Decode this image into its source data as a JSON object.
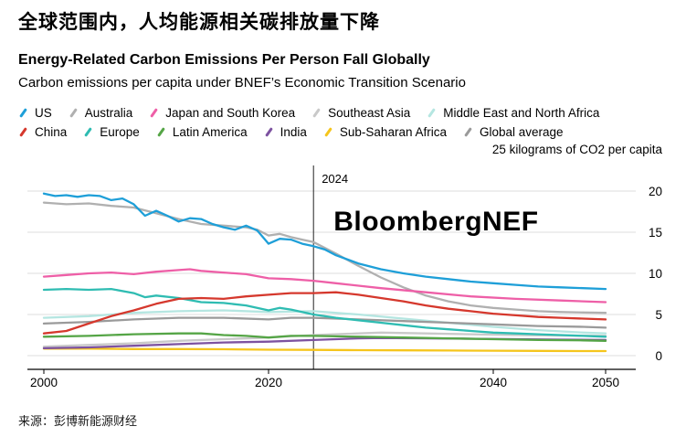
{
  "header": {
    "title_cn": "全球范围内，人均能源相关碳排放量下降",
    "title_en": "Energy-Related Carbon Emissions Per Person Fall Globally",
    "subtitle": "Carbon emissions per capita under BNEF’s Economic Transition Scenario"
  },
  "legend_rows": [
    [
      "US",
      "Australia",
      "Japan and South Korea",
      "Southeast Asia",
      "Middle East and North Africa"
    ],
    [
      "China",
      "Europe",
      "Latin America",
      "India",
      "Sub-Saharan Africa",
      "Global average"
    ]
  ],
  "chart_data": {
    "type": "line",
    "unit_label": "25 kilograms of CO2 per capita",
    "watermark": "BloombergNEF",
    "x_range": [
      2000,
      2050
    ],
    "ylim": [
      0,
      25
    ],
    "y_ticks": [
      0,
      5,
      10,
      15,
      20
    ],
    "x_ticks": [
      2000,
      2020,
      2040,
      2050
    ],
    "annotation": {
      "year": 2024,
      "label": "2024"
    },
    "grid": true,
    "legend_position": "top",
    "series": [
      {
        "name": "Middle East and North Africa",
        "color": "#b5e6e1",
        "points": [
          [
            2000,
            4.6
          ],
          [
            2004,
            4.8
          ],
          [
            2008,
            5.2
          ],
          [
            2012,
            5.4
          ],
          [
            2016,
            5.5
          ],
          [
            2020,
            5.3
          ],
          [
            2024,
            5.4
          ],
          [
            2028,
            5.0
          ],
          [
            2032,
            4.5
          ],
          [
            2036,
            4.0
          ],
          [
            2040,
            3.5
          ],
          [
            2044,
            3.1
          ],
          [
            2048,
            2.8
          ],
          [
            2050,
            2.7
          ]
        ]
      },
      {
        "name": "Southeast Asia",
        "color": "#c9c9c9",
        "points": [
          [
            2000,
            1.1
          ],
          [
            2004,
            1.3
          ],
          [
            2008,
            1.5
          ],
          [
            2012,
            1.8
          ],
          [
            2016,
            2.0
          ],
          [
            2020,
            2.2
          ],
          [
            2024,
            2.5
          ],
          [
            2028,
            2.7
          ],
          [
            2030,
            2.8
          ],
          [
            2034,
            2.7
          ],
          [
            2038,
            2.6
          ],
          [
            2042,
            2.5
          ],
          [
            2046,
            2.45
          ],
          [
            2050,
            2.4
          ]
        ]
      },
      {
        "name": "Global average",
        "color": "#9a9a9a",
        "points": [
          [
            2000,
            3.9
          ],
          [
            2004,
            4.1
          ],
          [
            2008,
            4.4
          ],
          [
            2012,
            4.6
          ],
          [
            2016,
            4.6
          ],
          [
            2020,
            4.4
          ],
          [
            2022,
            4.6
          ],
          [
            2024,
            4.6
          ],
          [
            2028,
            4.4
          ],
          [
            2032,
            4.2
          ],
          [
            2036,
            4.0
          ],
          [
            2040,
            3.8
          ],
          [
            2044,
            3.6
          ],
          [
            2048,
            3.5
          ],
          [
            2050,
            3.4
          ]
        ]
      },
      {
        "name": "Sub-Saharan Africa",
        "color": "#f5c51c",
        "points": [
          [
            2000,
            0.85
          ],
          [
            2004,
            0.85
          ],
          [
            2008,
            0.8
          ],
          [
            2012,
            0.8
          ],
          [
            2016,
            0.78
          ],
          [
            2020,
            0.72
          ],
          [
            2024,
            0.7
          ],
          [
            2028,
            0.67
          ],
          [
            2032,
            0.64
          ],
          [
            2036,
            0.62
          ],
          [
            2040,
            0.6
          ],
          [
            2044,
            0.58
          ],
          [
            2048,
            0.56
          ],
          [
            2050,
            0.55
          ]
        ]
      },
      {
        "name": "India",
        "color": "#7d52a0",
        "points": [
          [
            2000,
            0.9
          ],
          [
            2004,
            1.0
          ],
          [
            2008,
            1.2
          ],
          [
            2012,
            1.4
          ],
          [
            2016,
            1.6
          ],
          [
            2020,
            1.7
          ],
          [
            2024,
            1.9
          ],
          [
            2028,
            2.1
          ],
          [
            2030,
            2.15
          ],
          [
            2034,
            2.1
          ],
          [
            2038,
            2.05
          ],
          [
            2042,
            2.0
          ],
          [
            2046,
            1.95
          ],
          [
            2050,
            1.9
          ]
        ]
      },
      {
        "name": "Latin America",
        "color": "#55a546",
        "points": [
          [
            2000,
            2.3
          ],
          [
            2004,
            2.4
          ],
          [
            2008,
            2.6
          ],
          [
            2012,
            2.7
          ],
          [
            2014,
            2.7
          ],
          [
            2016,
            2.5
          ],
          [
            2018,
            2.4
          ],
          [
            2020,
            2.2
          ],
          [
            2022,
            2.4
          ],
          [
            2024,
            2.4
          ],
          [
            2028,
            2.3
          ],
          [
            2032,
            2.2
          ],
          [
            2036,
            2.1
          ],
          [
            2040,
            2.0
          ],
          [
            2044,
            1.9
          ],
          [
            2048,
            1.85
          ],
          [
            2050,
            1.8
          ]
        ]
      },
      {
        "name": "Europe",
        "color": "#2fbcb2",
        "points": [
          [
            2000,
            8.0
          ],
          [
            2002,
            8.1
          ],
          [
            2004,
            8.0
          ],
          [
            2006,
            8.1
          ],
          [
            2008,
            7.6
          ],
          [
            2009,
            7.1
          ],
          [
            2010,
            7.3
          ],
          [
            2012,
            7.0
          ],
          [
            2014,
            6.5
          ],
          [
            2016,
            6.4
          ],
          [
            2018,
            6.1
          ],
          [
            2020,
            5.5
          ],
          [
            2021,
            5.8
          ],
          [
            2022,
            5.6
          ],
          [
            2024,
            5.0
          ],
          [
            2026,
            4.6
          ],
          [
            2028,
            4.3
          ],
          [
            2030,
            4.0
          ],
          [
            2032,
            3.7
          ],
          [
            2034,
            3.4
          ],
          [
            2036,
            3.2
          ],
          [
            2038,
            3.0
          ],
          [
            2040,
            2.8
          ],
          [
            2042,
            2.7
          ],
          [
            2044,
            2.6
          ],
          [
            2046,
            2.5
          ],
          [
            2048,
            2.4
          ],
          [
            2050,
            2.3
          ]
        ]
      },
      {
        "name": "Australia",
        "color": "#b0b0b0",
        "points": [
          [
            2000,
            18.6
          ],
          [
            2002,
            18.4
          ],
          [
            2004,
            18.5
          ],
          [
            2006,
            18.2
          ],
          [
            2008,
            18.0
          ],
          [
            2010,
            17.3
          ],
          [
            2012,
            16.6
          ],
          [
            2014,
            16.0
          ],
          [
            2016,
            15.8
          ],
          [
            2018,
            15.6
          ],
          [
            2019,
            15.3
          ],
          [
            2020,
            14.6
          ],
          [
            2021,
            14.8
          ],
          [
            2022,
            14.4
          ],
          [
            2023,
            14.1
          ],
          [
            2024,
            13.8
          ],
          [
            2026,
            12.4
          ],
          [
            2028,
            10.9
          ],
          [
            2030,
            9.5
          ],
          [
            2032,
            8.3
          ],
          [
            2034,
            7.3
          ],
          [
            2036,
            6.6
          ],
          [
            2038,
            6.1
          ],
          [
            2040,
            5.8
          ],
          [
            2042,
            5.6
          ],
          [
            2044,
            5.4
          ],
          [
            2046,
            5.3
          ],
          [
            2048,
            5.25
          ],
          [
            2050,
            5.2
          ]
        ]
      },
      {
        "name": "Japan and South Korea",
        "color": "#ee5fa7",
        "points": [
          [
            2000,
            9.6
          ],
          [
            2002,
            9.8
          ],
          [
            2004,
            10.0
          ],
          [
            2006,
            10.1
          ],
          [
            2008,
            9.9
          ],
          [
            2010,
            10.2
          ],
          [
            2012,
            10.4
          ],
          [
            2013,
            10.5
          ],
          [
            2014,
            10.3
          ],
          [
            2016,
            10.1
          ],
          [
            2018,
            9.9
          ],
          [
            2020,
            9.4
          ],
          [
            2022,
            9.3
          ],
          [
            2024,
            9.1
          ],
          [
            2026,
            8.8
          ],
          [
            2028,
            8.5
          ],
          [
            2030,
            8.2
          ],
          [
            2034,
            7.7
          ],
          [
            2038,
            7.2
          ],
          [
            2042,
            6.9
          ],
          [
            2046,
            6.7
          ],
          [
            2050,
            6.5
          ]
        ]
      },
      {
        "name": "China",
        "color": "#d5382d",
        "points": [
          [
            2000,
            2.7
          ],
          [
            2002,
            3.0
          ],
          [
            2004,
            3.9
          ],
          [
            2006,
            4.8
          ],
          [
            2008,
            5.5
          ],
          [
            2010,
            6.3
          ],
          [
            2012,
            6.9
          ],
          [
            2014,
            7.0
          ],
          [
            2016,
            6.9
          ],
          [
            2018,
            7.2
          ],
          [
            2020,
            7.4
          ],
          [
            2022,
            7.6
          ],
          [
            2024,
            7.6
          ],
          [
            2026,
            7.7
          ],
          [
            2028,
            7.4
          ],
          [
            2030,
            7.0
          ],
          [
            2032,
            6.6
          ],
          [
            2034,
            6.1
          ],
          [
            2036,
            5.7
          ],
          [
            2038,
            5.4
          ],
          [
            2040,
            5.1
          ],
          [
            2042,
            4.9
          ],
          [
            2044,
            4.7
          ],
          [
            2046,
            4.6
          ],
          [
            2048,
            4.5
          ],
          [
            2050,
            4.4
          ]
        ]
      },
      {
        "name": "US",
        "color": "#1e9fd8",
        "points": [
          [
            2000,
            19.7
          ],
          [
            2001,
            19.4
          ],
          [
            2002,
            19.5
          ],
          [
            2003,
            19.3
          ],
          [
            2004,
            19.5
          ],
          [
            2005,
            19.4
          ],
          [
            2006,
            18.9
          ],
          [
            2007,
            19.1
          ],
          [
            2008,
            18.4
          ],
          [
            2009,
            17.0
          ],
          [
            2010,
            17.6
          ],
          [
            2011,
            17.0
          ],
          [
            2012,
            16.3
          ],
          [
            2013,
            16.7
          ],
          [
            2014,
            16.6
          ],
          [
            2015,
            16.0
          ],
          [
            2016,
            15.6
          ],
          [
            2017,
            15.3
          ],
          [
            2018,
            15.8
          ],
          [
            2019,
            15.2
          ],
          [
            2020,
            13.6
          ],
          [
            2021,
            14.2
          ],
          [
            2022,
            14.1
          ],
          [
            2023,
            13.6
          ],
          [
            2024,
            13.3
          ],
          [
            2025,
            12.9
          ],
          [
            2026,
            12.2
          ],
          [
            2028,
            11.2
          ],
          [
            2030,
            10.5
          ],
          [
            2032,
            10.0
          ],
          [
            2034,
            9.6
          ],
          [
            2036,
            9.3
          ],
          [
            2038,
            9.0
          ],
          [
            2040,
            8.8
          ],
          [
            2042,
            8.6
          ],
          [
            2044,
            8.4
          ],
          [
            2046,
            8.3
          ],
          [
            2048,
            8.2
          ],
          [
            2050,
            8.1
          ]
        ]
      }
    ]
  },
  "footer": {
    "source": "来源：彭博新能源财经"
  }
}
